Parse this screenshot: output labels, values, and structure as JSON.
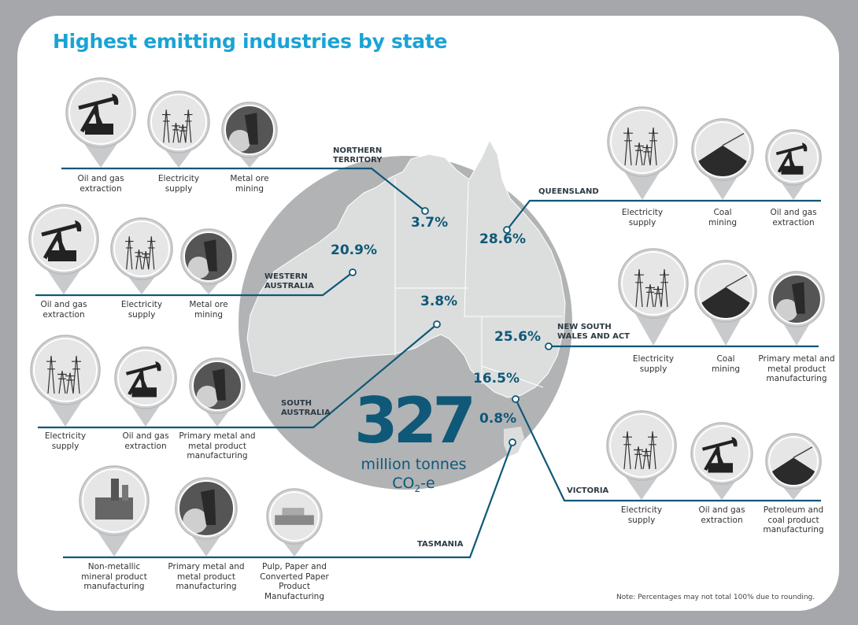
{
  "title": "Highest emitting industries by state",
  "total": {
    "value": "327",
    "unit_line1": "million tonnes",
    "unit_co2": "CO",
    "unit_sub": "2",
    "unit_suffix": "-e"
  },
  "note": "Note: Percentages may not total 100% due to rounding.",
  "colors": {
    "title": "#1aa3d5",
    "accent": "#0f5878",
    "circle": "#b2b3b5",
    "land": "#dcdedd",
    "frame": "#a6a7aa"
  },
  "states": [
    {
      "name": "NORTHERN\nTERRITORY",
      "percent": "3.7%",
      "industries": [
        {
          "label": "Oil and gas\nextraction",
          "icon": "pumpjack-icon"
        },
        {
          "label": "Electricity\nsupply",
          "icon": "power-pylon-icon"
        },
        {
          "label": "Metal ore\nmining",
          "icon": "metal-mining-icon"
        }
      ]
    },
    {
      "name": "WESTERN\nAUSTRALIA",
      "percent": "20.9%",
      "industries": [
        {
          "label": "Oil and gas\nextraction",
          "icon": "pumpjack-icon"
        },
        {
          "label": "Electricity\nsupply",
          "icon": "power-pylon-icon"
        },
        {
          "label": "Metal ore\nmining",
          "icon": "metal-mining-icon"
        }
      ]
    },
    {
      "name": "SOUTH\nAUSTRALIA",
      "percent": "3.8%",
      "industries": [
        {
          "label": "Electricity\nsupply",
          "icon": "power-pylon-icon"
        },
        {
          "label": "Oil and gas\nextraction",
          "icon": "pumpjack-icon"
        },
        {
          "label": "Primary metal and\nmetal product\nmanufacturing",
          "icon": "metal-mining-icon"
        }
      ]
    },
    {
      "name": "TASMANIA",
      "percent": "0.8%",
      "industries": [
        {
          "label": "Non-metallic\nmineral product\nmanufacturing",
          "icon": "factory-icon"
        },
        {
          "label": "Primary metal and\nmetal product\nmanufacturing",
          "icon": "metal-mining-icon"
        },
        {
          "label": "Pulp, Paper and\nConverted Paper\nProduct\nManufacturing",
          "icon": "paper-mill-icon"
        }
      ]
    },
    {
      "name": "QUEENSLAND",
      "percent": "28.6%",
      "industries": [
        {
          "label": "Electricity\nsupply",
          "icon": "power-pylon-icon"
        },
        {
          "label": "Coal\nmining",
          "icon": "coal-pile-icon"
        },
        {
          "label": "Oil and gas\nextraction",
          "icon": "pumpjack-icon"
        }
      ]
    },
    {
      "name": "NEW SOUTH\nWALES AND ACT",
      "percent": "25.6%",
      "industries": [
        {
          "label": "Electricity\nsupply",
          "icon": "power-pylon-icon"
        },
        {
          "label": "Coal\nmining",
          "icon": "coal-pile-icon"
        },
        {
          "label": "Primary metal and\nmetal product\nmanufacturing",
          "icon": "metal-mining-icon"
        }
      ]
    },
    {
      "name": "VICTORIA",
      "percent": "16.5%",
      "industries": [
        {
          "label": "Electricity\nsupply",
          "icon": "power-pylon-icon"
        },
        {
          "label": "Oil and gas\nextraction",
          "icon": "pumpjack-icon"
        },
        {
          "label": "Petroleum and\ncoal product\nmanufacturing",
          "icon": "coal-pile-icon"
        }
      ]
    }
  ]
}
